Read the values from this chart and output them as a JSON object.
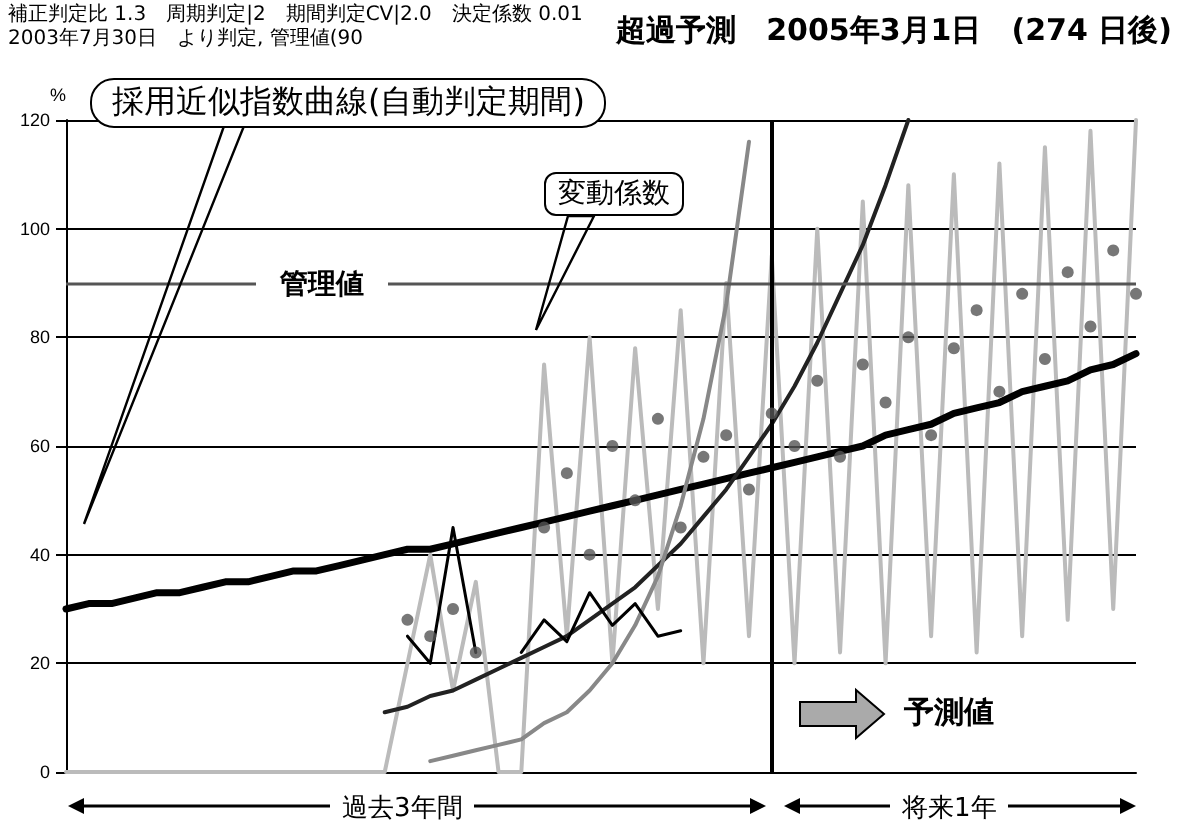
{
  "chart_data": {
    "type": "line",
    "title": "超過予測　2005年3月1日　(274 日後)",
    "subtitle": "補正判定比 1.3　周期判定|2　期間判定CV|2.0　決定係数 0.01　2003年7月30日　より判定, 管理値(90",
    "ylabel": "%",
    "annotations": [
      "採用近似指数曲線(自動判定期間)",
      "変動係数",
      "予測値",
      "過去3年間",
      "将来1年"
    ],
    "categories": [
      null,
      null,
      null,
      null,
      null,
      null,
      null,
      null,
      null,
      null,
      null,
      null,
      null,
      null,
      null,
      null,
      null,
      null,
      null,
      null,
      null,
      null,
      null,
      null,
      null,
      null,
      null,
      null,
      null,
      null,
      null,
      null,
      null,
      null,
      null,
      null,
      null,
      null,
      null,
      null,
      null,
      null,
      null,
      null,
      null,
      null,
      null,
      null
    ],
    "series": [
      {
        "color": "#bbbbbb",
        "values": [
          0,
          0,
          0,
          0,
          0,
          0,
          0,
          0,
          0,
          0,
          0,
          0,
          0,
          0,
          0,
          20,
          40,
          15,
          35,
          0,
          0,
          75,
          25,
          80,
          20,
          78,
          30,
          85,
          20,
          90,
          25,
          95,
          20,
          100,
          22,
          105,
          20,
          108,
          25,
          110,
          22,
          112,
          25,
          115,
          28,
          118,
          30,
          120
        ]
      },
      {
        "type": "scatter",
        "color": "#555555",
        "marker": "circle",
        "values": [
          null,
          null,
          null,
          null,
          null,
          null,
          null,
          null,
          null,
          null,
          null,
          null,
          null,
          null,
          null,
          28,
          25,
          30,
          22,
          null,
          null,
          45,
          55,
          40,
          60,
          50,
          65,
          45,
          58,
          62,
          52,
          66,
          60,
          72,
          58,
          75,
          68,
          80,
          62,
          78,
          85,
          70,
          88,
          76,
          92,
          82,
          96,
          88
        ]
      },
      {
        "color": "#000000",
        "values": [
          30,
          31,
          31,
          32,
          33,
          33,
          34,
          35,
          35,
          36,
          37,
          37,
          38,
          39,
          40,
          41,
          41,
          42,
          43,
          44,
          45,
          46,
          47,
          48,
          49,
          50,
          51,
          52,
          53,
          54,
          55,
          56,
          57,
          58,
          59,
          60,
          62,
          63,
          64,
          66,
          67,
          68,
          70,
          71,
          72,
          74,
          75,
          77
        ]
      },
      {
        "color": "#222222",
        "values": [
          null,
          null,
          null,
          null,
          null,
          null,
          null,
          null,
          null,
          null,
          null,
          null,
          null,
          null,
          11,
          12,
          14,
          15,
          17,
          19,
          21,
          23,
          25,
          28,
          31,
          34,
          38,
          42,
          47,
          52,
          58,
          64,
          71,
          79,
          88,
          97,
          108,
          120,
          null,
          null,
          null,
          null,
          null,
          null,
          null,
          null,
          null,
          null
        ]
      },
      {
        "color": "#888888",
        "values": [
          null,
          null,
          null,
          null,
          null,
          null,
          null,
          null,
          null,
          null,
          null,
          null,
          null,
          null,
          null,
          null,
          2,
          3,
          4,
          5,
          6,
          9,
          11,
          15,
          20,
          27,
          36,
          49,
          65,
          86,
          116,
          null,
          null,
          null,
          null,
          null,
          null,
          null,
          null,
          null,
          null,
          null,
          null,
          null,
          null,
          null,
          null,
          null
        ]
      },
      {
        "color": "#000000",
        "values": [
          null,
          null,
          null,
          null,
          null,
          null,
          null,
          null,
          null,
          null,
          null,
          null,
          null,
          null,
          null,
          25,
          20,
          45,
          22,
          null,
          22,
          28,
          24,
          33,
          27,
          31,
          25,
          26,
          null,
          null,
          null,
          null,
          null,
          null,
          null,
          null,
          null,
          null,
          null,
          null,
          null,
          null,
          null,
          null,
          null,
          null,
          null,
          null
        ]
      }
    ],
    "ylim": [
      0,
      120
    ],
    "yticks": [
      0,
      20,
      40,
      60,
      80,
      100,
      120
    ],
    "grid": "y",
    "tick_labels": "y",
    "ref_lines": [
      {
        "axis": "y",
        "value": 90,
        "label": "管理値",
        "color": "#555555"
      }
    ]
  }
}
